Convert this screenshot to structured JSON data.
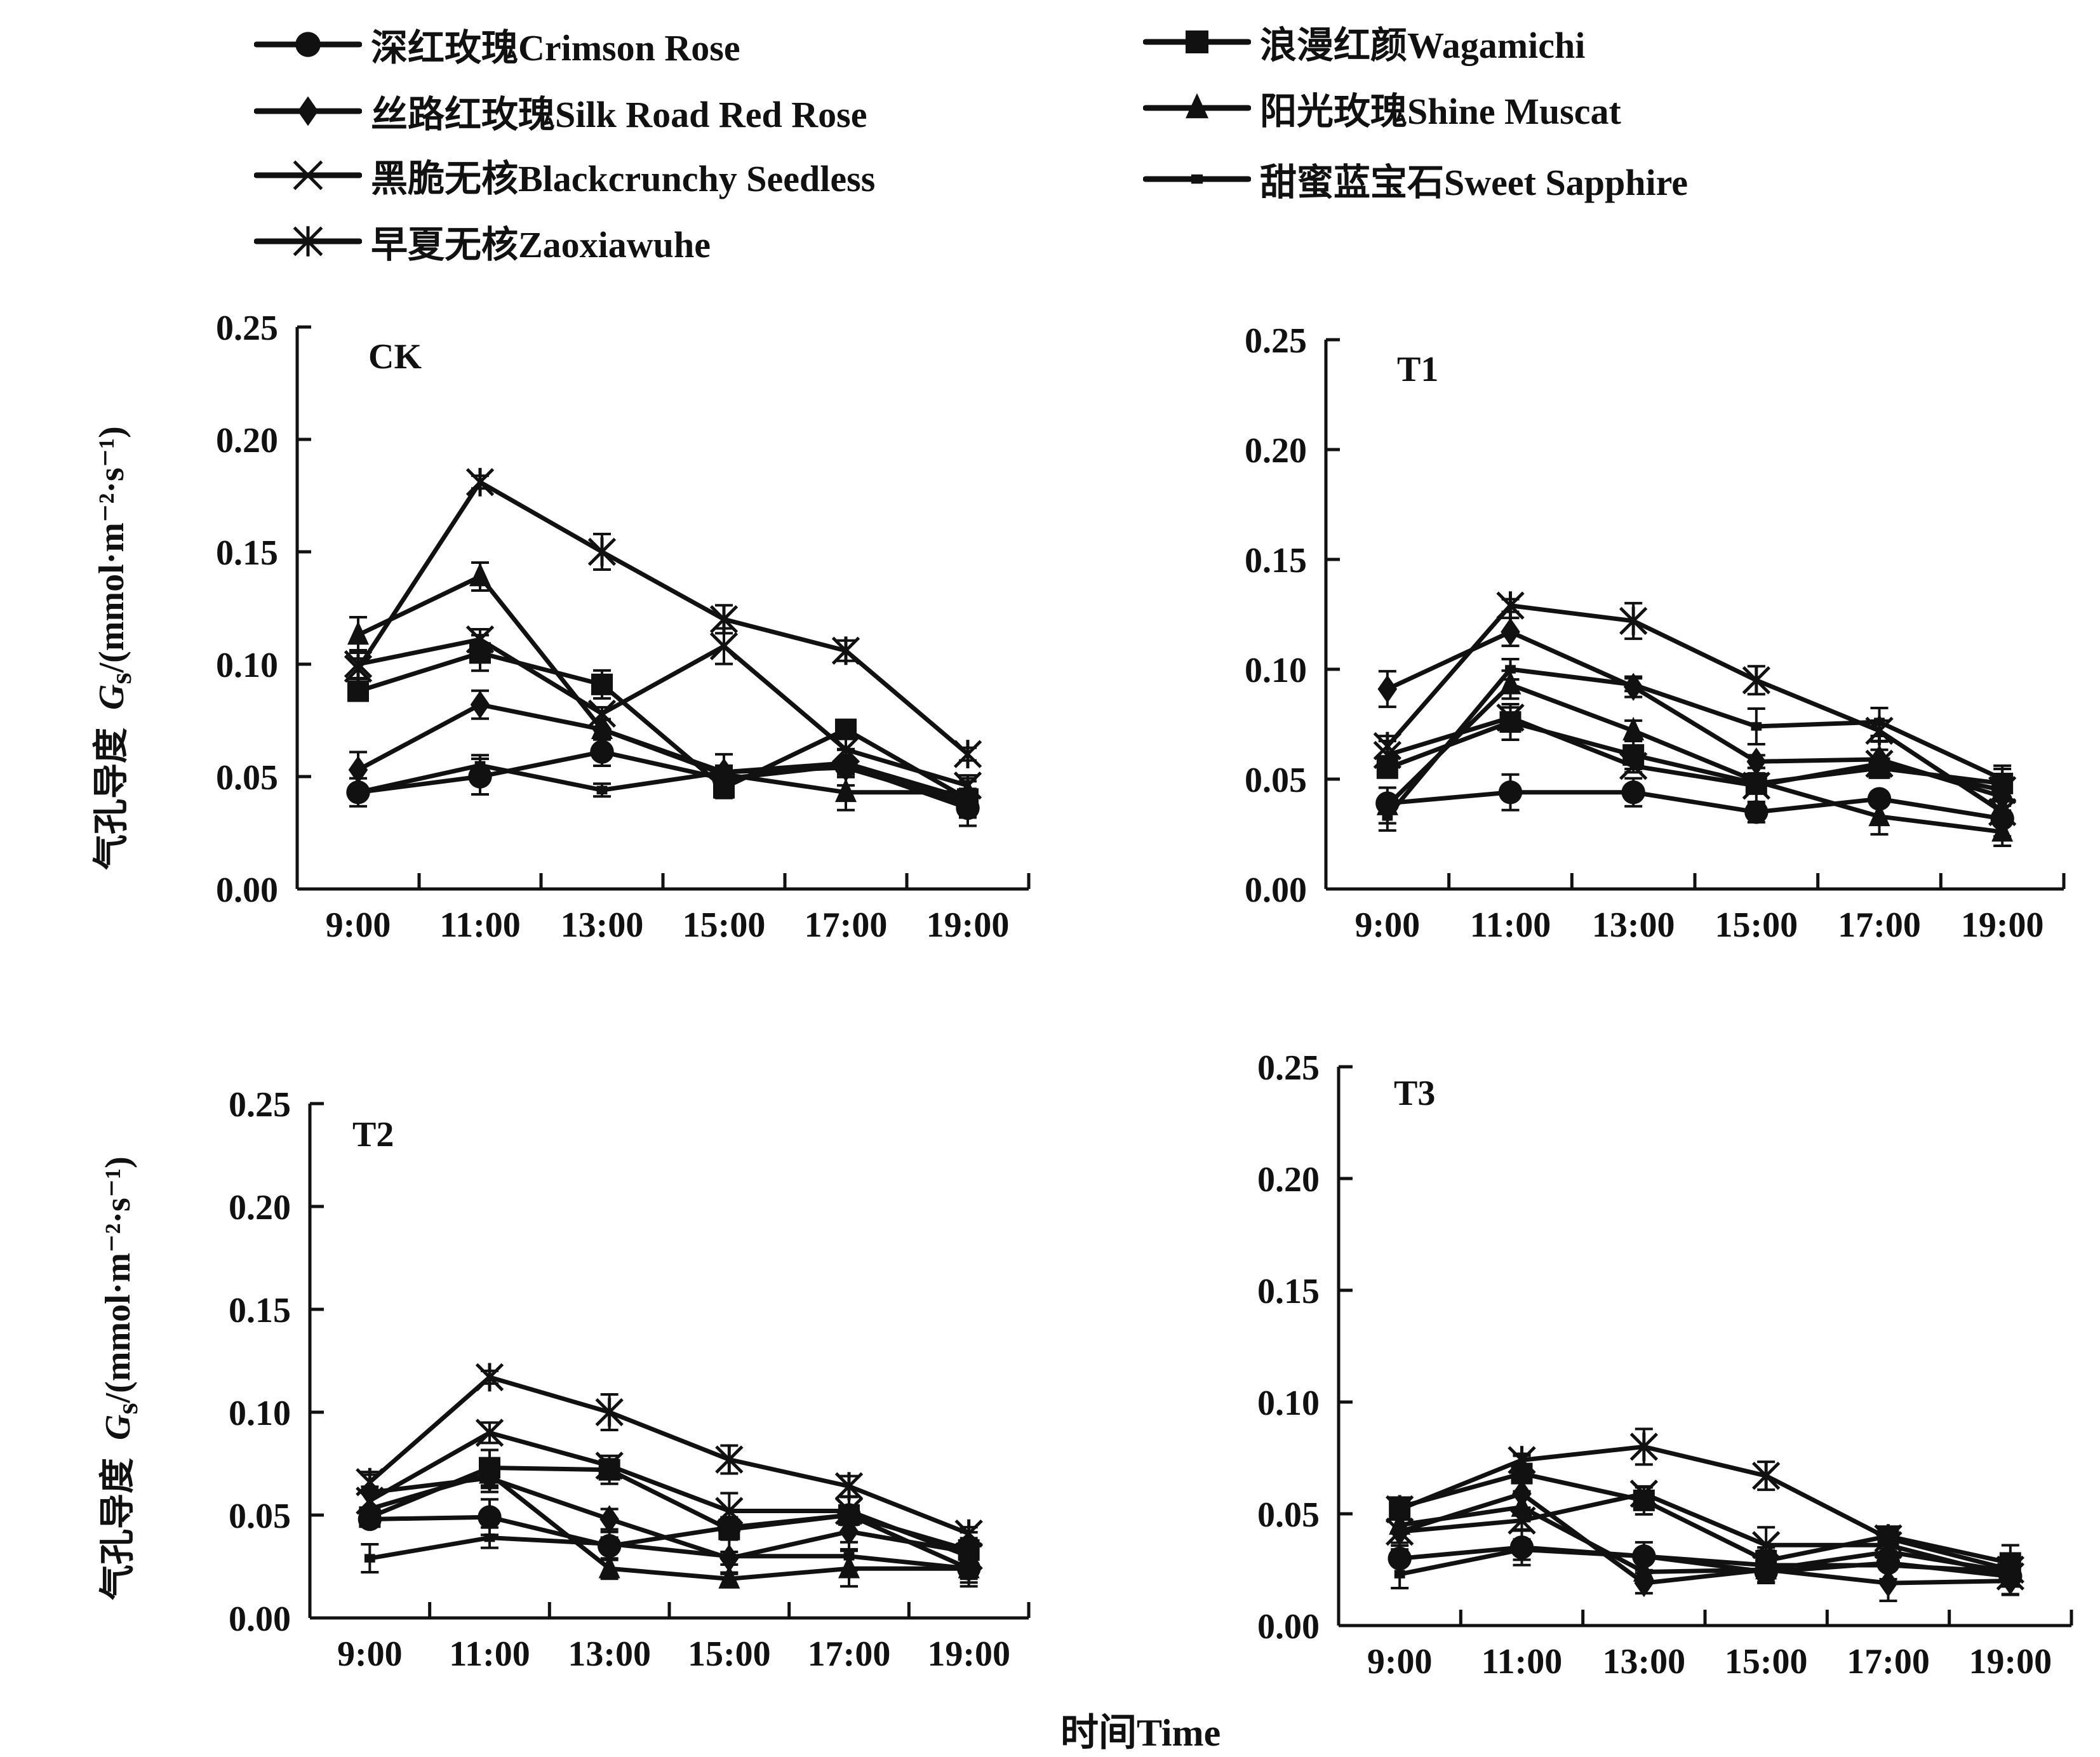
{
  "legend": [
    {
      "label": "深红玫瑰Crimson Rose",
      "marker": "circle"
    },
    {
      "label": "丝路红玫瑰Silk Road Red Rose",
      "marker": "diamond"
    },
    {
      "label": "黑脆无核Blackcrunchy Seedless",
      "marker": "x"
    },
    {
      "label": "早夏无核Zaoxiawuhe",
      "marker": "star"
    },
    {
      "label": "浪漫红颜Wagamichi",
      "marker": "square"
    },
    {
      "label": "阳光玫瑰Shine Muscat",
      "marker": "triangle"
    },
    {
      "label": "甜蜜蓝宝石Sweet Sapphire",
      "marker": "dash"
    }
  ],
  "ylabel_cn": "气孔导度",
  "ylabel_symbol": "G",
  "ylabel_sub": "s",
  "ylabel_unit": "/(mmol·m⁻²·s⁻¹)",
  "xlabel": "时间Time",
  "colors": {
    "line": "#111111",
    "background": "#ffffff"
  },
  "chart_data": [
    {
      "type": "line",
      "title": "CK",
      "xlabel": "时间Time",
      "ylabel": "气孔导度 Gs/(mmol·m⁻²·s⁻¹)",
      "x": [
        "9:00",
        "11:00",
        "13:00",
        "15:00",
        "17:00",
        "19:00"
      ],
      "yticks": [
        "0.00",
        "0.05",
        "0.10",
        "0.15",
        "0.20",
        "0.25"
      ],
      "ylim": [
        0,
        0.25
      ],
      "series": [
        {
          "name": "深红玫瑰Crimson Rose",
          "values": [
            0.043,
            0.05,
            0.061,
            0.049,
            0.055,
            0.036
          ]
        },
        {
          "name": "丝路红玫瑰Silk Road Red Rose",
          "values": [
            0.053,
            0.082,
            0.071,
            0.052,
            0.054,
            0.038
          ]
        },
        {
          "name": "黑脆无核Blackcrunchy Seedless",
          "values": [
            0.1,
            0.111,
            0.078,
            0.108,
            0.062,
            0.046
          ]
        },
        {
          "name": "早夏无核Zaoxiawuhe",
          "values": [
            0.098,
            0.181,
            0.15,
            0.12,
            0.106,
            0.06
          ]
        },
        {
          "name": "浪漫红颜Wagamichi",
          "values": [
            0.088,
            0.105,
            0.091,
            0.045,
            0.071,
            0.04
          ]
        },
        {
          "name": "阳光玫瑰Shine Muscat",
          "values": [
            0.113,
            0.139,
            0.071,
            0.051,
            0.043,
            0.043
          ]
        },
        {
          "name": "甜蜜蓝宝石Sweet Sapphire",
          "values": [
            0.043,
            0.055,
            0.044,
            0.052,
            0.056,
            0.04
          ]
        }
      ]
    },
    {
      "type": "line",
      "title": "T1",
      "xlabel": "时间Time",
      "ylabel": "气孔导度 Gs/(mmol·m⁻²·s⁻¹)",
      "x": [
        "9:00",
        "11:00",
        "13:00",
        "15:00",
        "17:00",
        "19:00"
      ],
      "yticks": [
        "0.00",
        "0.05",
        "0.10",
        "0.15",
        "0.20",
        "0.25"
      ],
      "ylim": [
        0,
        0.25
      ],
      "series": [
        {
          "name": "深红玫瑰Crimson Rose",
          "values": [
            0.039,
            0.044,
            0.044,
            0.035,
            0.041,
            0.032
          ]
        },
        {
          "name": "丝路红玫瑰Silk Road Red Rose",
          "values": [
            0.091,
            0.117,
            0.092,
            0.058,
            0.059,
            0.042
          ]
        },
        {
          "name": "黑脆无核Blackcrunchy Seedless",
          "values": [
            0.061,
            0.078,
            0.056,
            0.047,
            0.057,
            0.045
          ]
        },
        {
          "name": "早夏无核Zaoxiawuhe",
          "values": [
            0.065,
            0.129,
            0.122,
            0.095,
            0.072,
            0.035
          ]
        },
        {
          "name": "浪漫红颜Wagamichi",
          "values": [
            0.055,
            0.076,
            0.061,
            0.048,
            0.055,
            0.048
          ]
        },
        {
          "name": "阳光玫瑰Shine Muscat",
          "values": [
            0.038,
            0.093,
            0.072,
            0.049,
            0.033,
            0.026
          ]
        },
        {
          "name": "甜蜜蓝宝石Sweet Sapphire",
          "values": [
            0.033,
            0.1,
            0.093,
            0.074,
            0.076,
            0.05
          ]
        }
      ]
    },
    {
      "type": "line",
      "title": "T2",
      "xlabel": "时间Time",
      "ylabel": "气孔导度 Gs/(mmol·m⁻²·s⁻¹)",
      "x": [
        "9:00",
        "11:00",
        "13:00",
        "15:00",
        "17:00",
        "19:00"
      ],
      "yticks": [
        "0.00",
        "0.05",
        "0.10",
        "0.15",
        "0.20",
        "0.25"
      ],
      "ylim": [
        0,
        0.25
      ],
      "series": [
        {
          "name": "深红玫瑰Crimson Rose",
          "values": [
            0.048,
            0.049,
            0.035,
            0.044,
            0.05,
            0.024
          ]
        },
        {
          "name": "丝路红玫瑰Silk Road Red Rose",
          "values": [
            0.061,
            0.068,
            0.048,
            0.029,
            0.042,
            0.032
          ]
        },
        {
          "name": "黑脆无核Blackcrunchy Seedless",
          "values": [
            0.057,
            0.09,
            0.074,
            0.052,
            0.052,
            0.03
          ]
        },
        {
          "name": "早夏无核Zaoxiawuhe",
          "values": [
            0.066,
            0.117,
            0.1,
            0.077,
            0.064,
            0.041
          ]
        },
        {
          "name": "浪漫红颜Wagamichi",
          "values": [
            0.049,
            0.073,
            0.072,
            0.043,
            0.05,
            0.033
          ]
        },
        {
          "name": "阳光玫瑰Shine Muscat",
          "values": [
            0.053,
            0.07,
            0.024,
            0.019,
            0.024,
            0.024
          ]
        },
        {
          "name": "甜蜜蓝宝石Sweet Sapphire",
          "values": [
            0.029,
            0.039,
            0.036,
            0.03,
            0.03,
            0.024
          ]
        }
      ]
    },
    {
      "type": "line",
      "title": "T3",
      "xlabel": "时间Time",
      "ylabel": "气孔导度 Gs/(mmol·m⁻²·s⁻¹)",
      "x": [
        "9:00",
        "11:00",
        "13:00",
        "15:00",
        "17:00",
        "19:00"
      ],
      "yticks": [
        "0.00",
        "0.05",
        "0.10",
        "0.15",
        "0.20",
        "0.25"
      ],
      "ylim": [
        0,
        0.25
      ],
      "series": [
        {
          "name": "深红玫瑰Crimson Rose",
          "values": [
            0.03,
            0.035,
            0.031,
            0.024,
            0.028,
            0.022
          ]
        },
        {
          "name": "丝路红玫瑰Silk Road Red Rose",
          "values": [
            0.042,
            0.059,
            0.019,
            0.025,
            0.019,
            0.02
          ]
        },
        {
          "name": "黑脆无核Blackcrunchy Seedless",
          "values": [
            0.042,
            0.047,
            0.059,
            0.036,
            0.036,
            0.022
          ]
        },
        {
          "name": "早夏无核Zaoxiawuhe",
          "values": [
            0.052,
            0.074,
            0.08,
            0.067,
            0.039,
            0.025
          ]
        },
        {
          "name": "浪漫红颜Wagamichi",
          "values": [
            0.053,
            0.068,
            0.056,
            0.029,
            0.04,
            0.028
          ]
        },
        {
          "name": "阳光玫瑰Shine Muscat",
          "values": [
            0.045,
            0.053,
            0.024,
            0.025,
            0.033,
            0.024
          ]
        },
        {
          "name": "甜蜜蓝宝石Sweet Sapphire",
          "values": [
            0.023,
            0.034,
            0.031,
            0.027,
            0.027,
            0.024
          ]
        }
      ]
    }
  ]
}
